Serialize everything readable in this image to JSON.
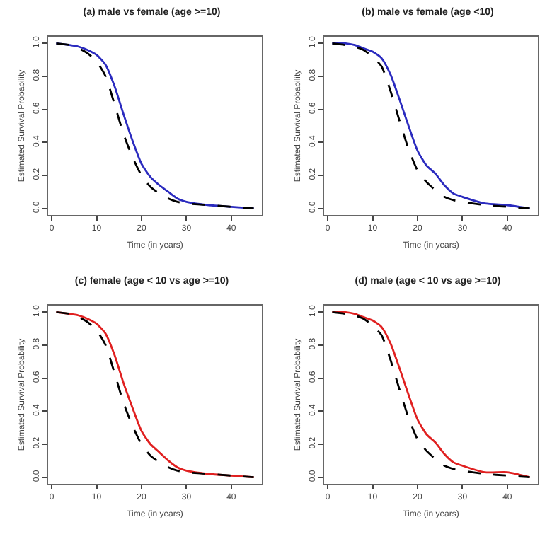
{
  "chart_data": [
    {
      "type": "line",
      "title": "(a) male vs female (age >=10)",
      "xlabel": "Time (in years)",
      "ylabel": "Estimated Survival Probability",
      "x": [
        1,
        4,
        6,
        8,
        10,
        12,
        14,
        16,
        18,
        20,
        22,
        24,
        26,
        28,
        30,
        35,
        40,
        45
      ],
      "xlim": [
        -0.8,
        46.8
      ],
      "xticks": [
        0,
        10,
        20,
        30,
        40
      ],
      "ylim": [
        -0.04,
        1.04
      ],
      "yticks": [
        {
          "value": 0,
          "label": "0.0"
        },
        {
          "value": 0.2,
          "label": "0.2"
        },
        {
          "value": 0.4,
          "label": "0.4"
        },
        {
          "value": 0.6,
          "label": "0.6"
        },
        {
          "value": 0.8,
          "label": "0.8"
        },
        {
          "value": 1,
          "label": "1.0"
        }
      ],
      "grid": false,
      "marker": "none",
      "series": [
        {
          "color": "#2b2bbf",
          "line_style": "solid",
          "values": [
            1.0,
            0.99,
            0.98,
            0.96,
            0.93,
            0.87,
            0.74,
            0.57,
            0.41,
            0.27,
            0.19,
            0.14,
            0.1,
            0.06,
            0.04,
            0.02,
            0.01,
            0.0
          ]
        },
        {
          "color": "#000000",
          "line_style": "dashed",
          "values": [
            1.0,
            0.99,
            0.97,
            0.94,
            0.89,
            0.8,
            0.63,
            0.45,
            0.31,
            0.2,
            0.13,
            0.09,
            0.06,
            0.04,
            0.03,
            0.02,
            0.01,
            0.0
          ]
        }
      ]
    },
    {
      "type": "line",
      "title": "(b) male vs female (age <10)",
      "xlabel": "Time (in years)",
      "ylabel": "Estimated Survival Probability",
      "x": [
        1,
        4,
        6,
        8,
        10,
        12,
        14,
        16,
        18,
        20,
        22,
        24,
        26,
        28,
        30,
        35,
        40,
        45
      ],
      "xlim": [
        -0.8,
        46.8
      ],
      "xticks": [
        0,
        10,
        20,
        30,
        40
      ],
      "ylim": [
        -0.04,
        1.04
      ],
      "yticks": [
        {
          "value": 0,
          "label": "0.0"
        },
        {
          "value": 0.2,
          "label": "0.2"
        },
        {
          "value": 0.4,
          "label": "0.4"
        },
        {
          "value": 0.6,
          "label": "0.6"
        },
        {
          "value": 0.8,
          "label": "0.8"
        },
        {
          "value": 1,
          "label": "1.0"
        }
      ],
      "grid": false,
      "marker": "none",
      "series": [
        {
          "color": "#2b2bbf",
          "line_style": "solid",
          "values": [
            1.0,
            1.0,
            0.99,
            0.97,
            0.95,
            0.91,
            0.81,
            0.66,
            0.5,
            0.35,
            0.26,
            0.21,
            0.14,
            0.09,
            0.07,
            0.03,
            0.02,
            0.0
          ]
        },
        {
          "color": "#000000",
          "line_style": "dashed",
          "values": [
            1.0,
            0.99,
            0.98,
            0.96,
            0.92,
            0.86,
            0.71,
            0.53,
            0.36,
            0.23,
            0.16,
            0.11,
            0.07,
            0.05,
            0.04,
            0.02,
            0.01,
            0.0
          ]
        }
      ]
    },
    {
      "type": "line",
      "title": "(c) female (age < 10 vs age >=10)",
      "xlabel": "Time (in years)",
      "ylabel": "Estimated Survival Probability",
      "x": [
        1,
        4,
        6,
        8,
        10,
        12,
        14,
        16,
        18,
        20,
        22,
        24,
        26,
        28,
        30,
        35,
        40,
        45
      ],
      "xlim": [
        -0.8,
        46.8
      ],
      "xticks": [
        0,
        10,
        20,
        30,
        40
      ],
      "ylim": [
        -0.04,
        1.04
      ],
      "yticks": [
        {
          "value": 0,
          "label": "0.0"
        },
        {
          "value": 0.2,
          "label": "0.2"
        },
        {
          "value": 0.4,
          "label": "0.4"
        },
        {
          "value": 0.6,
          "label": "0.6"
        },
        {
          "value": 0.8,
          "label": "0.8"
        },
        {
          "value": 1,
          "label": "1.0"
        }
      ],
      "grid": false,
      "marker": "none",
      "series": [
        {
          "color": "#e02020",
          "line_style": "solid",
          "values": [
            1.0,
            0.99,
            0.98,
            0.96,
            0.93,
            0.87,
            0.74,
            0.57,
            0.42,
            0.28,
            0.2,
            0.15,
            0.1,
            0.06,
            0.04,
            0.02,
            0.01,
            0.0
          ]
        },
        {
          "color": "#000000",
          "line_style": "dashed",
          "values": [
            1.0,
            0.99,
            0.97,
            0.94,
            0.89,
            0.8,
            0.63,
            0.45,
            0.31,
            0.2,
            0.13,
            0.09,
            0.06,
            0.04,
            0.03,
            0.02,
            0.01,
            0.0
          ]
        }
      ]
    },
    {
      "type": "line",
      "title": "(d) male (age < 10 vs age >=10)",
      "xlabel": "Time (in years)",
      "ylabel": "Estimated Survival Probability",
      "x": [
        1,
        4,
        6,
        8,
        10,
        12,
        14,
        16,
        18,
        20,
        22,
        24,
        26,
        28,
        30,
        35,
        40,
        45
      ],
      "xlim": [
        -0.8,
        46.8
      ],
      "xticks": [
        0,
        10,
        20,
        30,
        40
      ],
      "ylim": [
        -0.04,
        1.04
      ],
      "yticks": [
        {
          "value": 0,
          "label": "0.0"
        },
        {
          "value": 0.2,
          "label": "0.2"
        },
        {
          "value": 0.4,
          "label": "0.4"
        },
        {
          "value": 0.6,
          "label": "0.6"
        },
        {
          "value": 0.8,
          "label": "0.8"
        },
        {
          "value": 1,
          "label": "1.0"
        }
      ],
      "grid": false,
      "marker": "none",
      "series": [
        {
          "color": "#e02020",
          "line_style": "solid",
          "values": [
            1.0,
            1.0,
            0.99,
            0.97,
            0.95,
            0.91,
            0.81,
            0.66,
            0.5,
            0.35,
            0.26,
            0.21,
            0.14,
            0.09,
            0.07,
            0.03,
            0.03,
            0.0
          ]
        },
        {
          "color": "#000000",
          "line_style": "dashed",
          "values": [
            1.0,
            0.99,
            0.98,
            0.96,
            0.92,
            0.86,
            0.71,
            0.53,
            0.36,
            0.23,
            0.16,
            0.11,
            0.07,
            0.05,
            0.04,
            0.02,
            0.01,
            0.0
          ]
        }
      ]
    }
  ]
}
